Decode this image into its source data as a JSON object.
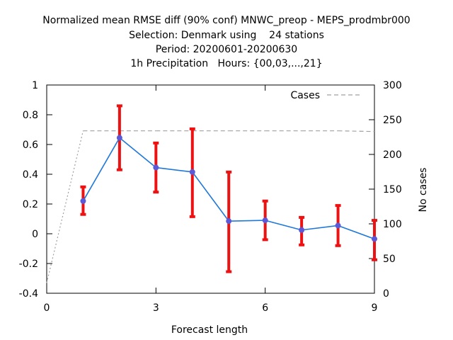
{
  "chart_data": {
    "type": "line",
    "title_lines": [
      "Normalized mean RMSE diff (90% conf) MNWC_preop - MEPS_prodmbr000",
      "Selection: Denmark using    24 stations",
      "Period: 20200601-20200630",
      "1h Precipitation   Hours: {00,03,...,21}"
    ],
    "xlabel": "Forecast length",
    "ylabel": "",
    "y2label": "No cases",
    "xlim": [
      0,
      9
    ],
    "ylim": [
      -0.4,
      1
    ],
    "y2lim": [
      0,
      300
    ],
    "x_ticks": [
      "0",
      "3",
      "6",
      "9"
    ],
    "y_ticks": [
      "-0.4",
      "-0.2",
      "0",
      "0.2",
      "0.4",
      "0.6",
      "0.8",
      "1"
    ],
    "y2_ticks": [
      "0",
      "50",
      "100",
      "150",
      "200",
      "250",
      "300"
    ],
    "grid": false,
    "legend_position": "top-right",
    "series": [
      {
        "kind": "line-errorbars",
        "color": "#1f78d8",
        "marker_color": "#5a5ad8",
        "errorbar_color": "#ee1111",
        "x": [
          1,
          2,
          3,
          4,
          5,
          6,
          7,
          8,
          9
        ],
        "y": [
          0.22,
          0.645,
          0.445,
          0.415,
          0.085,
          0.09,
          0.025,
          0.055,
          -0.035
        ],
        "low": [
          0.13,
          0.43,
          0.28,
          0.115,
          -0.255,
          -0.04,
          -0.075,
          -0.08,
          -0.175
        ],
        "high": [
          0.315,
          0.86,
          0.61,
          0.705,
          0.415,
          0.22,
          0.11,
          0.19,
          0.09
        ]
      },
      {
        "name": "Cases",
        "kind": "dashed",
        "axis": "y2",
        "color": "#a0a0a0",
        "x": [
          0,
          1,
          2,
          3,
          4,
          5,
          6,
          7,
          8,
          9
        ],
        "y": [
          15,
          234,
          234,
          234,
          234,
          234,
          234,
          234,
          234,
          233
        ]
      }
    ]
  }
}
